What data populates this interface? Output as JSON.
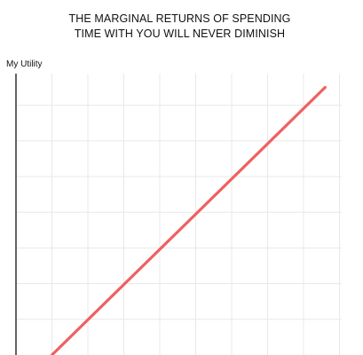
{
  "chart_data": {
    "type": "line",
    "title": [
      "THE MARGINAL RETURNS OF SPENDING",
      "TIME WITH YOU WILL NEVER DIMINISH"
    ],
    "xlabel": "",
    "ylabel": "My Utility",
    "xlim": [
      0,
      10
    ],
    "ylim": [
      0,
      10
    ],
    "grid": true,
    "series": [
      {
        "x": [
          1,
          8.6
        ],
        "y": [
          0,
          7.5
        ],
        "color": "#f06060"
      }
    ]
  },
  "colors": {
    "grid": "#e8e8e8",
    "axis": "#111111",
    "line": "#f06060"
  }
}
